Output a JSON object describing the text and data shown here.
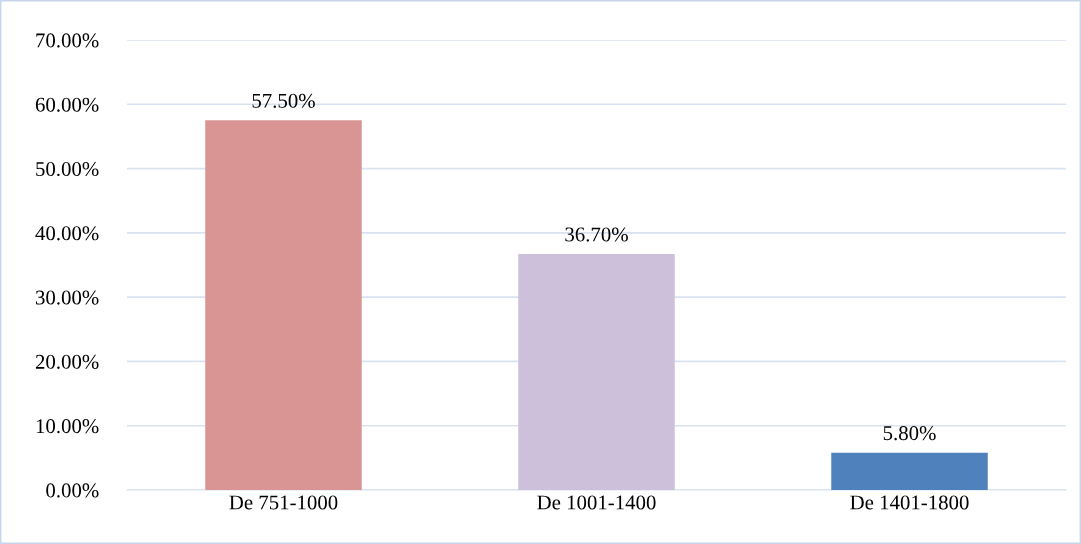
{
  "chart_data": {
    "type": "bar",
    "categories": [
      "De 751-1000",
      "De 1001-1400",
      "De 1401-1800"
    ],
    "values": [
      57.5,
      36.7,
      5.8
    ],
    "colors": [
      "#d99594",
      "#ccc0da",
      "#4f81bd"
    ],
    "value_labels": [
      "57.50%",
      "36.70%",
      "5.80%"
    ],
    "ylim": [
      0,
      70
    ],
    "yticks": [
      {
        "value": 0,
        "label": "0.00%"
      },
      {
        "value": 10,
        "label": "10.00%"
      },
      {
        "value": 20,
        "label": "20.00%"
      },
      {
        "value": 30,
        "label": "30.00%"
      },
      {
        "value": 40,
        "label": "40.00%"
      },
      {
        "value": 50,
        "label": "50.00%"
      },
      {
        "value": 60,
        "label": "60.00%"
      },
      {
        "value": 70,
        "label": "70.00%"
      }
    ],
    "grid": "y",
    "legend": false
  }
}
